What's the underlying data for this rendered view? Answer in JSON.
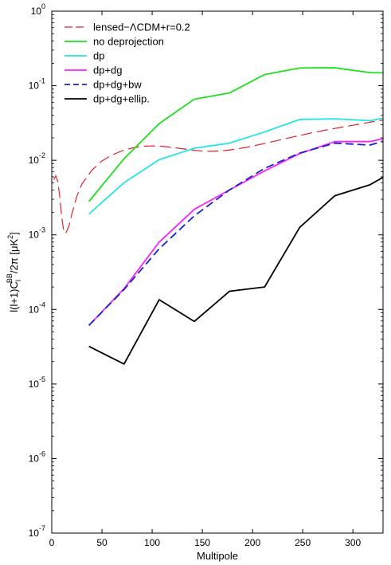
{
  "chart_data": {
    "type": "line",
    "title": "",
    "xlabel": "Multipole",
    "ylabel": {
      "base": "l(l+1)C",
      "sub": "l",
      "sup": "BB",
      "tail": "/2π [μK",
      "unit_sup": "2",
      "end": "]"
    },
    "xlim": [
      0,
      330
    ],
    "ylim": [
      1e-07,
      1
    ],
    "yscale": "log",
    "grid": false,
    "legend_position": "top-left",
    "x_ticks": [
      0,
      50,
      100,
      150,
      200,
      250,
      300
    ],
    "x_tick_labels": [
      "0",
      "50",
      "100",
      "150",
      "200",
      "250",
      "300"
    ],
    "y_ticks": [
      1e-07,
      1e-06,
      1e-05,
      0.0001,
      0.001,
      0.01,
      0.1,
      1
    ],
    "y_tick_labels": [
      {
        "base": "10",
        "exp": "-7"
      },
      {
        "base": "10",
        "exp": "-6"
      },
      {
        "base": "10",
        "exp": "-5"
      },
      {
        "base": "10",
        "exp": "-4"
      },
      {
        "base": "10",
        "exp": "-3"
      },
      {
        "base": "10",
        "exp": "-2"
      },
      {
        "base": "10",
        "exp": "-1"
      },
      {
        "base": "10",
        "exp": "0"
      }
    ],
    "series": [
      {
        "name": "lensed−ΛCDM+r=0.2",
        "color": "#e0222b",
        "dash": "dashed-long",
        "x": [
          2,
          4,
          6,
          8,
          10,
          12,
          14,
          17,
          20,
          25,
          30,
          40,
          50,
          60,
          70,
          80,
          90,
          100,
          110,
          120,
          130,
          140,
          150,
          160,
          170,
          180,
          190,
          200,
          220,
          240,
          260,
          280,
          300,
          320,
          330
        ],
        "y": [
          0.0055,
          0.0062,
          0.0052,
          0.0032,
          0.0017,
          0.0011,
          0.00105,
          0.0013,
          0.0019,
          0.0033,
          0.0048,
          0.0074,
          0.0098,
          0.0118,
          0.0134,
          0.0146,
          0.0154,
          0.0156,
          0.0154,
          0.0149,
          0.0143,
          0.0137,
          0.0133,
          0.0132,
          0.0134,
          0.0139,
          0.0146,
          0.0155,
          0.0178,
          0.0205,
          0.0235,
          0.0265,
          0.0295,
          0.033,
          0.0345
        ]
      },
      {
        "name": "no deprojection",
        "color": "#1ee01e",
        "dash": "solid",
        "x": [
          37,
          72,
          107,
          142,
          177,
          212,
          247,
          282,
          317,
          330
        ],
        "y": [
          0.0028,
          0.0105,
          0.031,
          0.066,
          0.08,
          0.141,
          0.173,
          0.174,
          0.15,
          0.149
        ]
      },
      {
        "name": "dp",
        "color": "#22e5e5",
        "dash": "solid",
        "x": [
          37,
          72,
          107,
          142,
          177,
          212,
          247,
          282,
          317,
          330
        ],
        "y": [
          0.0019,
          0.005,
          0.0102,
          0.0145,
          0.017,
          0.024,
          0.0353,
          0.036,
          0.034,
          0.0365
        ]
      },
      {
        "name": "dp+dg",
        "color": "#ff22ff",
        "dash": "solid",
        "x": [
          37,
          72,
          107,
          142,
          177,
          212,
          247,
          282,
          317,
          330
        ],
        "y": [
          6.1e-05,
          0.00019,
          0.0008,
          0.0022,
          0.004,
          0.0072,
          0.0123,
          0.0178,
          0.0178,
          0.0195
        ]
      },
      {
        "name": "dp+dg+bw",
        "color": "#1a22cc",
        "dash": "dashed",
        "x": [
          37,
          72,
          107,
          142,
          177,
          212,
          247,
          282,
          317,
          330
        ],
        "y": [
          6.1e-05,
          0.000185,
          0.00065,
          0.0018,
          0.004,
          0.0078,
          0.0125,
          0.017,
          0.016,
          0.018
        ]
      },
      {
        "name": "dp+dg+ellip.",
        "color": "#000000",
        "dash": "solid",
        "x": [
          37,
          72,
          107,
          142,
          177,
          212,
          247,
          282,
          317,
          330
        ],
        "y": [
          3.2e-05,
          1.85e-05,
          0.000135,
          6.9e-05,
          0.000175,
          0.0002,
          0.00126,
          0.00335,
          0.0047,
          0.0059
        ]
      }
    ]
  }
}
